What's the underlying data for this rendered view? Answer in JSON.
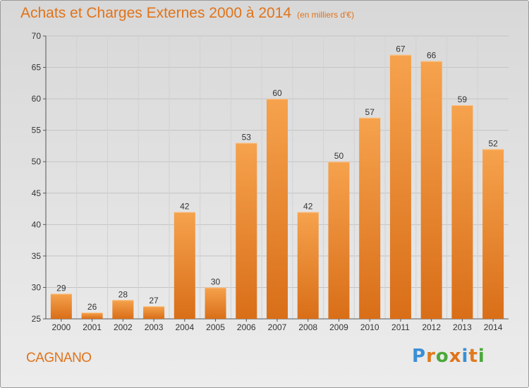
{
  "header": {
    "title": "Achats et Charges Externes 2000 à 2014",
    "unit": "(en milliers d'€)"
  },
  "footer": {
    "commune": "CAGNANO",
    "logo": "Proxiti"
  },
  "colors": {
    "bar_light": "#f6a24d",
    "bar_dark": "#d96e18",
    "title": "#e0731a",
    "logo_letters": [
      "#3a8fd6",
      "#e07a1e",
      "#4aa83a",
      "#e0731a",
      "#3a8fd6",
      "#e07a1e",
      "#4aa83a"
    ]
  },
  "chart_data": {
    "type": "bar",
    "categories": [
      "2000",
      "2001",
      "2002",
      "2003",
      "2004",
      "2005",
      "2006",
      "2007",
      "2008",
      "2009",
      "2010",
      "2011",
      "2012",
      "2013",
      "2014"
    ],
    "values": [
      29,
      26,
      28,
      27,
      42,
      30,
      53,
      60,
      42,
      50,
      57,
      67,
      66,
      59,
      52
    ],
    "title": "Achats et Charges Externes 2000 à 2014",
    "xlabel": "",
    "ylabel": "",
    "ylim": [
      25,
      70
    ],
    "yticks": [
      25,
      30,
      35,
      40,
      45,
      50,
      55,
      60,
      65,
      70
    ],
    "grid": true
  }
}
